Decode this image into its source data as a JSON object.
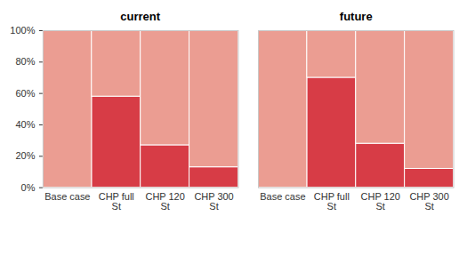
{
  "chart_data": [
    {
      "type": "bar",
      "title": "current",
      "stacked": true,
      "categories": [
        "Base case",
        "CHP full St",
        "CHP 120 St",
        "CHP 300 St"
      ],
      "series": [
        {
          "color": "#d73c46",
          "values": [
            0,
            58,
            27,
            13
          ]
        },
        {
          "color": "#eb9d92",
          "values": [
            100,
            42,
            73,
            87
          ]
        }
      ],
      "ylim": [
        0,
        100
      ],
      "yticks": [
        {
          "value": 0,
          "label": "0%"
        },
        {
          "value": 20,
          "label": "20%"
        },
        {
          "value": 40,
          "label": "40%"
        },
        {
          "value": 60,
          "label": "60%"
        },
        {
          "value": 80,
          "label": "80%"
        },
        {
          "value": 100,
          "label": "100%"
        }
      ]
    },
    {
      "type": "bar",
      "title": "future",
      "stacked": true,
      "tick_labels": "x",
      "categories": [
        "Base case",
        "CHP full St",
        "CHP 120 St",
        "CHP 300 St"
      ],
      "series": [
        {
          "color": "#d73c46",
          "values": [
            0,
            70,
            28,
            12
          ]
        },
        {
          "color": "#eb9d92",
          "values": [
            100,
            30,
            72,
            88
          ]
        }
      ],
      "ylim": [
        0,
        100
      ]
    }
  ]
}
